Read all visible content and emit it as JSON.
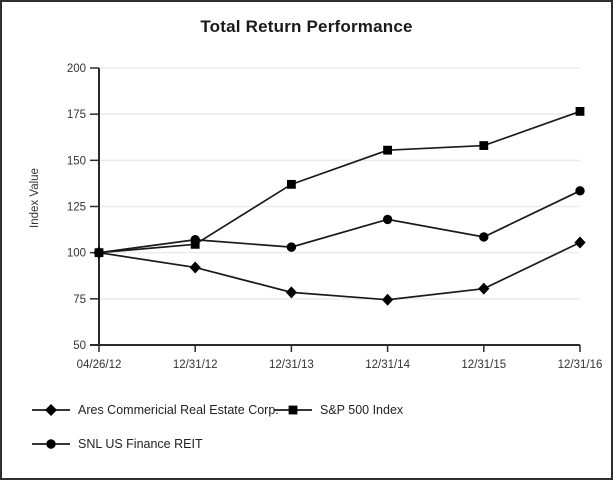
{
  "chart_data": {
    "type": "line",
    "title": "Total Return Performance",
    "ylabel": "Index Value",
    "xlabel": "",
    "categories": [
      "04/26/12",
      "12/31/12",
      "12/31/13",
      "12/31/14",
      "12/31/15",
      "12/31/16"
    ],
    "y_ticks": [
      50,
      75,
      100,
      125,
      150,
      175,
      200
    ],
    "ylim": [
      50,
      200
    ],
    "grid": true,
    "legend_position": "bottom",
    "series": [
      {
        "name": "Ares Commericial Real Estate Corp.",
        "marker": "diamond",
        "values": [
          100,
          92,
          78.5,
          74.5,
          80.5,
          105.5
        ]
      },
      {
        "name": "S&P 500 Index",
        "marker": "square",
        "values": [
          100,
          104.5,
          137,
          155.5,
          158,
          176.5
        ]
      },
      {
        "name": "SNL US Finance REIT",
        "marker": "circle",
        "values": [
          100,
          107,
          103,
          118,
          108.5,
          133.5
        ]
      }
    ],
    "colors": {
      "line": "#1a1a1a",
      "marker": "#000000",
      "grid": "#ebebeb",
      "axis": "#2b2b2b",
      "text": "#333333"
    }
  }
}
